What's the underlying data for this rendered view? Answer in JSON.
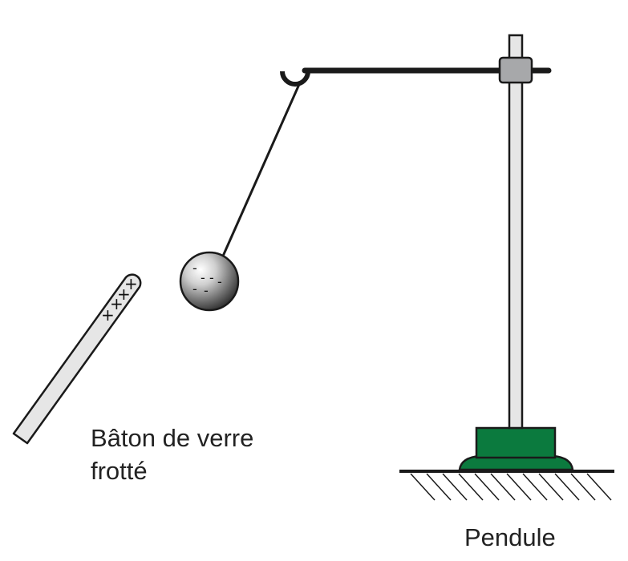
{
  "labels": {
    "rod_line1": "Bâton de verre",
    "rod_line2": "frotté",
    "pendulum": "Pendule"
  },
  "rod_charges": [
    "+",
    "+",
    "+",
    "+"
  ],
  "ball_charges": [
    "-",
    "-",
    "-",
    "-",
    "-",
    "-"
  ],
  "colors": {
    "base_green": "#0b7a3e",
    "clamp_grey": "#a7a8aa",
    "rod_fill": "#e6e6e6",
    "line": "#1a1a1a"
  }
}
